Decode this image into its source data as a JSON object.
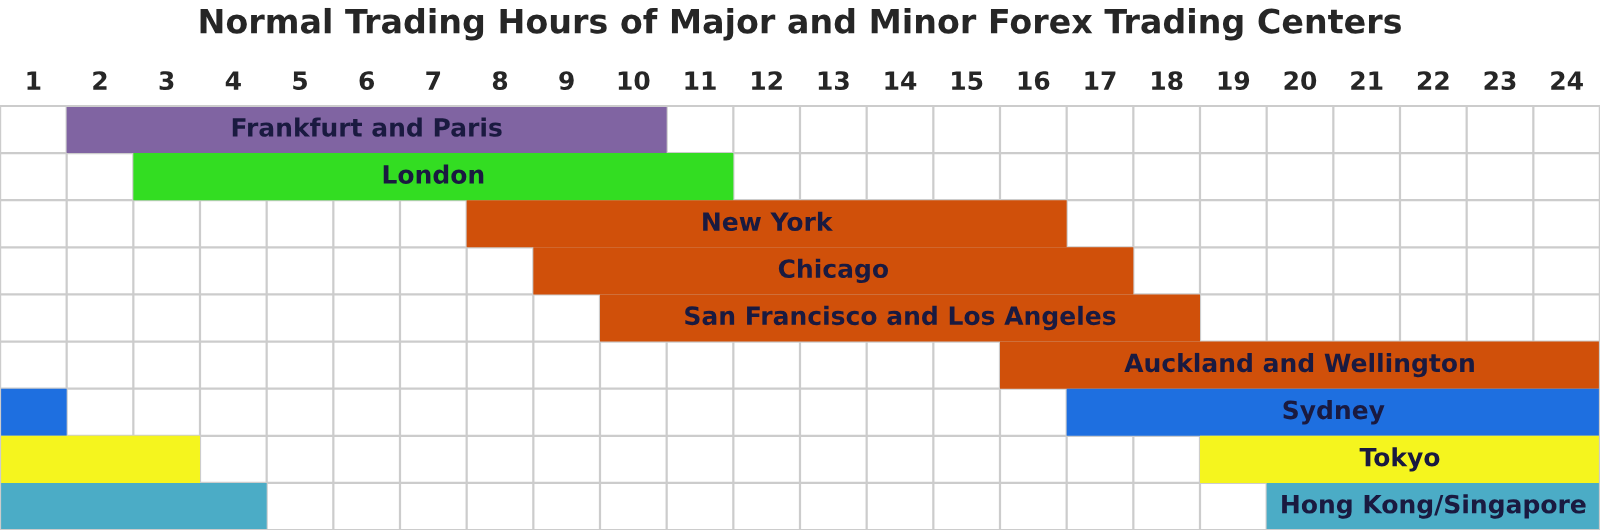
{
  "chart_data": {
    "type": "bar",
    "orientation": "horizontal",
    "title": "Normal Trading Hours of Major and Minor Forex Trading Centers",
    "categories": [
      "Frankfurt and Paris",
      "London",
      "New York",
      "Chicago",
      "San Francisco and Los Angeles",
      "Auckland and Wellington",
      "Sydney",
      "Tokyo",
      "Hong Kong/Singapore"
    ],
    "series": [
      {
        "values": [
          9,
          9,
          9,
          9,
          9,
          9,
          8,
          6,
          5
        ],
        "base": [
          1,
          2,
          7,
          8,
          9,
          15,
          16,
          18,
          19
        ],
        "colors": [
          "#8064a2",
          "#33dd22",
          "#d0500a",
          "#d0500a",
          "#d0500a",
          "#d0500a",
          "#1e6fe0",
          "#f5f51e",
          "#4bacc6"
        ]
      },
      {
        "values": [
          null,
          null,
          null,
          null,
          null,
          null,
          1,
          3,
          4
        ],
        "base": [
          null,
          null,
          null,
          null,
          null,
          null,
          0,
          0,
          0
        ],
        "colors": [
          null,
          null,
          null,
          null,
          null,
          null,
          "#1e6fe0",
          "#f5f51e",
          "#4bacc6"
        ]
      }
    ],
    "xlim": [
      0,
      24
    ],
    "xticks": [
      {
        "value": 0,
        "label": null
      },
      {
        "value": 0.5,
        "label": "1"
      },
      {
        "value": 1,
        "label": null
      },
      {
        "value": 1.5,
        "label": "2"
      },
      {
        "value": 2,
        "label": null
      },
      {
        "value": 2.5,
        "label": "3"
      },
      {
        "value": 3,
        "label": null
      },
      {
        "value": 3.5,
        "label": "4"
      },
      {
        "value": 4,
        "label": null
      },
      {
        "value": 4.5,
        "label": "5"
      },
      {
        "value": 5,
        "label": null
      },
      {
        "value": 5.5,
        "label": "6"
      },
      {
        "value": 6,
        "label": null
      },
      {
        "value": 6.5,
        "label": "7"
      },
      {
        "value": 7,
        "label": null
      },
      {
        "value": 7.5,
        "label": "8"
      },
      {
        "value": 8,
        "label": null
      },
      {
        "value": 8.5,
        "label": "9"
      },
      {
        "value": 9,
        "label": null
      },
      {
        "value": 9.5,
        "label": "10"
      },
      {
        "value": 10,
        "label": null
      },
      {
        "value": 10.5,
        "label": "11"
      },
      {
        "value": 11,
        "label": null
      },
      {
        "value": 11.5,
        "label": "12"
      },
      {
        "value": 12,
        "label": null
      },
      {
        "value": 12.5,
        "label": "13"
      },
      {
        "value": 13,
        "label": null
      },
      {
        "value": 13.5,
        "label": "14"
      },
      {
        "value": 14,
        "label": null
      },
      {
        "value": 14.5,
        "label": "15"
      },
      {
        "value": 15,
        "label": null
      },
      {
        "value": 15.5,
        "label": "16"
      },
      {
        "value": 16,
        "label": null
      },
      {
        "value": 16.5,
        "label": "17"
      },
      {
        "value": 17,
        "label": null
      },
      {
        "value": 17.5,
        "label": "18"
      },
      {
        "value": 18,
        "label": null
      },
      {
        "value": 18.5,
        "label": "19"
      },
      {
        "value": 19,
        "label": null
      },
      {
        "value": 19.5,
        "label": "20"
      },
      {
        "value": 20,
        "label": null
      },
      {
        "value": 20.5,
        "label": "21"
      },
      {
        "value": 21,
        "label": null
      },
      {
        "value": 21.5,
        "label": "22"
      },
      {
        "value": 22,
        "label": null
      },
      {
        "value": 22.5,
        "label": "23"
      },
      {
        "value": 23,
        "label": null
      },
      {
        "value": 23.5,
        "label": "24"
      },
      {
        "value": 24,
        "label": null
      }
    ],
    "grid": true,
    "legend": false
  }
}
